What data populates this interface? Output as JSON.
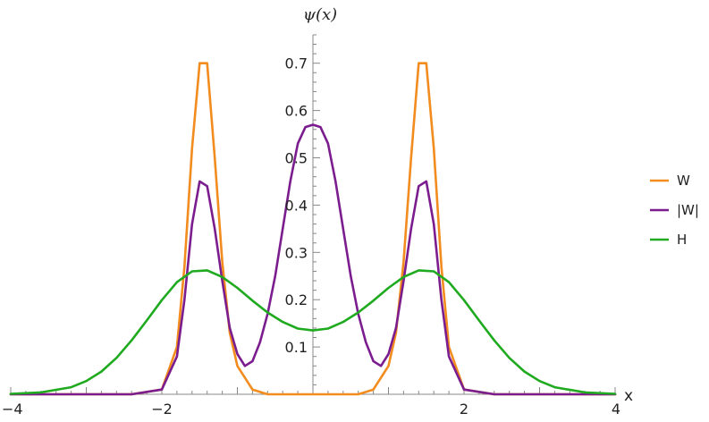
{
  "chart_data": {
    "type": "line",
    "xlabel": "x",
    "ylabel": "ψ(x)",
    "xlim": [
      -4,
      4
    ],
    "ylim": [
      0,
      0.76
    ],
    "x_ticks": [
      -4,
      -2,
      2,
      4
    ],
    "x_tick_labels": [
      "−4",
      "−2",
      "2",
      "4"
    ],
    "y_ticks": [
      0.1,
      0.2,
      0.3,
      0.4,
      0.5,
      0.6,
      0.7
    ],
    "y_tick_labels": [
      "0.1",
      "0.2",
      "0.3",
      "0.4",
      "0.5",
      "0.6",
      "0.7"
    ],
    "legend_position": "right",
    "series": [
      {
        "name": "W",
        "color": "#F28C1E",
        "x": [
          -4.0,
          -2.4,
          -2.0,
          -1.8,
          -1.7,
          -1.6,
          -1.5,
          -1.4,
          -1.3,
          -1.2,
          -1.1,
          -1.0,
          -0.8,
          -0.6,
          -0.4,
          -0.2,
          0.0,
          0.2,
          0.4,
          0.6,
          0.8,
          1.0,
          1.1,
          1.2,
          1.3,
          1.4,
          1.5,
          1.6,
          1.7,
          1.8,
          2.0,
          2.4,
          4.0
        ],
        "y": [
          0.0,
          0.0,
          0.01,
          0.1,
          0.27,
          0.52,
          0.7,
          0.7,
          0.5,
          0.28,
          0.13,
          0.06,
          0.01,
          0.0,
          0.0,
          0.0,
          0.0,
          0.0,
          0.0,
          0.0,
          0.01,
          0.06,
          0.13,
          0.28,
          0.5,
          0.7,
          0.7,
          0.52,
          0.27,
          0.1,
          0.01,
          0.0,
          0.0
        ]
      },
      {
        "name": "|W|",
        "color": "#7B1D8E",
        "x": [
          -4.0,
          -2.4,
          -2.0,
          -1.8,
          -1.7,
          -1.6,
          -1.5,
          -1.4,
          -1.3,
          -1.2,
          -1.1,
          -1.0,
          -0.9,
          -0.8,
          -0.7,
          -0.6,
          -0.5,
          -0.4,
          -0.3,
          -0.2,
          -0.1,
          0.0,
          0.1,
          0.2,
          0.3,
          0.4,
          0.5,
          0.6,
          0.7,
          0.8,
          0.9,
          1.0,
          1.1,
          1.2,
          1.3,
          1.4,
          1.5,
          1.6,
          1.7,
          1.8,
          2.0,
          2.4,
          4.0
        ],
        "y": [
          0.0,
          0.0,
          0.01,
          0.08,
          0.2,
          0.36,
          0.45,
          0.44,
          0.35,
          0.24,
          0.14,
          0.085,
          0.06,
          0.07,
          0.11,
          0.17,
          0.25,
          0.35,
          0.45,
          0.53,
          0.565,
          0.57,
          0.565,
          0.53,
          0.45,
          0.35,
          0.25,
          0.17,
          0.11,
          0.07,
          0.06,
          0.085,
          0.14,
          0.24,
          0.35,
          0.44,
          0.45,
          0.36,
          0.2,
          0.08,
          0.01,
          0.0,
          0.0
        ]
      },
      {
        "name": "H",
        "color": "#1FAA1F",
        "x": [
          -4.0,
          -3.6,
          -3.2,
          -3.0,
          -2.8,
          -2.6,
          -2.4,
          -2.2,
          -2.0,
          -1.8,
          -1.6,
          -1.4,
          -1.2,
          -1.0,
          -0.8,
          -0.6,
          -0.4,
          -0.2,
          0.0,
          0.2,
          0.4,
          0.6,
          0.8,
          1.0,
          1.2,
          1.4,
          1.6,
          1.8,
          2.0,
          2.2,
          2.4,
          2.6,
          2.8,
          3.0,
          3.2,
          3.6,
          4.0
        ],
        "y": [
          0.001,
          0.004,
          0.015,
          0.028,
          0.048,
          0.077,
          0.114,
          0.156,
          0.199,
          0.237,
          0.26,
          0.262,
          0.248,
          0.225,
          0.198,
          0.173,
          0.153,
          0.139,
          0.135,
          0.139,
          0.153,
          0.173,
          0.198,
          0.225,
          0.248,
          0.262,
          0.26,
          0.237,
          0.199,
          0.156,
          0.114,
          0.077,
          0.048,
          0.028,
          0.015,
          0.004,
          0.001
        ]
      }
    ]
  }
}
